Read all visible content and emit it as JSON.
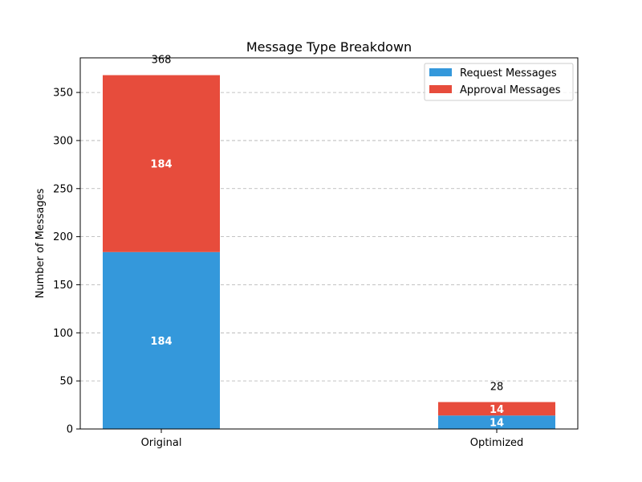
{
  "chart_data": {
    "type": "bar",
    "stacked": true,
    "title": "Message Type Breakdown",
    "xlabel": "",
    "ylabel": "Number of Messages",
    "categories": [
      "Original",
      "Optimized"
    ],
    "series": [
      {
        "name": "Request Messages",
        "values": [
          184,
          14
        ],
        "color": "#3498db"
      },
      {
        "name": "Approval Messages",
        "values": [
          184,
          14
        ],
        "color": "#e74c3c"
      }
    ],
    "totals": [
      368,
      28
    ],
    "ylim": [
      0,
      386
    ],
    "yticks": [
      0,
      50,
      100,
      150,
      200,
      250,
      300,
      350
    ],
    "grid": "y-dashed",
    "legend_position": "top-right"
  }
}
